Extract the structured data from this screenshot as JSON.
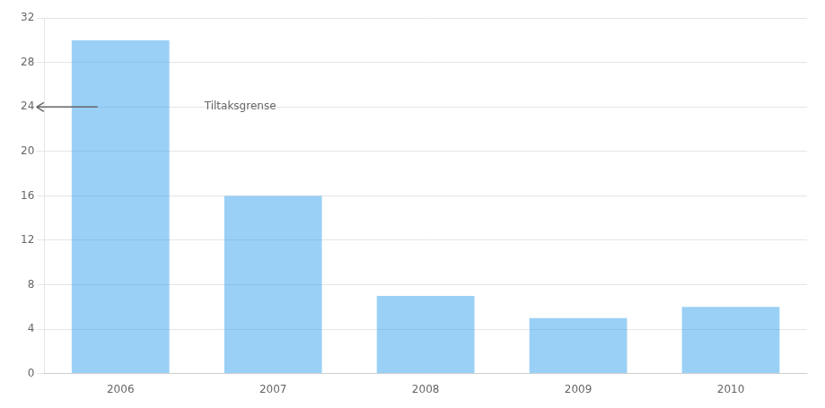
{
  "chart_data": {
    "type": "bar",
    "categories": [
      "2006",
      "2007",
      "2008",
      "2009",
      "2010"
    ],
    "values": [
      30,
      16,
      7,
      5,
      6
    ],
    "ylim": [
      0,
      32
    ],
    "yticks": [
      0,
      4,
      8,
      12,
      16,
      20,
      24,
      28,
      32
    ],
    "grid": true,
    "annotations": [
      {
        "text": "Tiltaksgrense",
        "y": 24
      }
    ]
  }
}
